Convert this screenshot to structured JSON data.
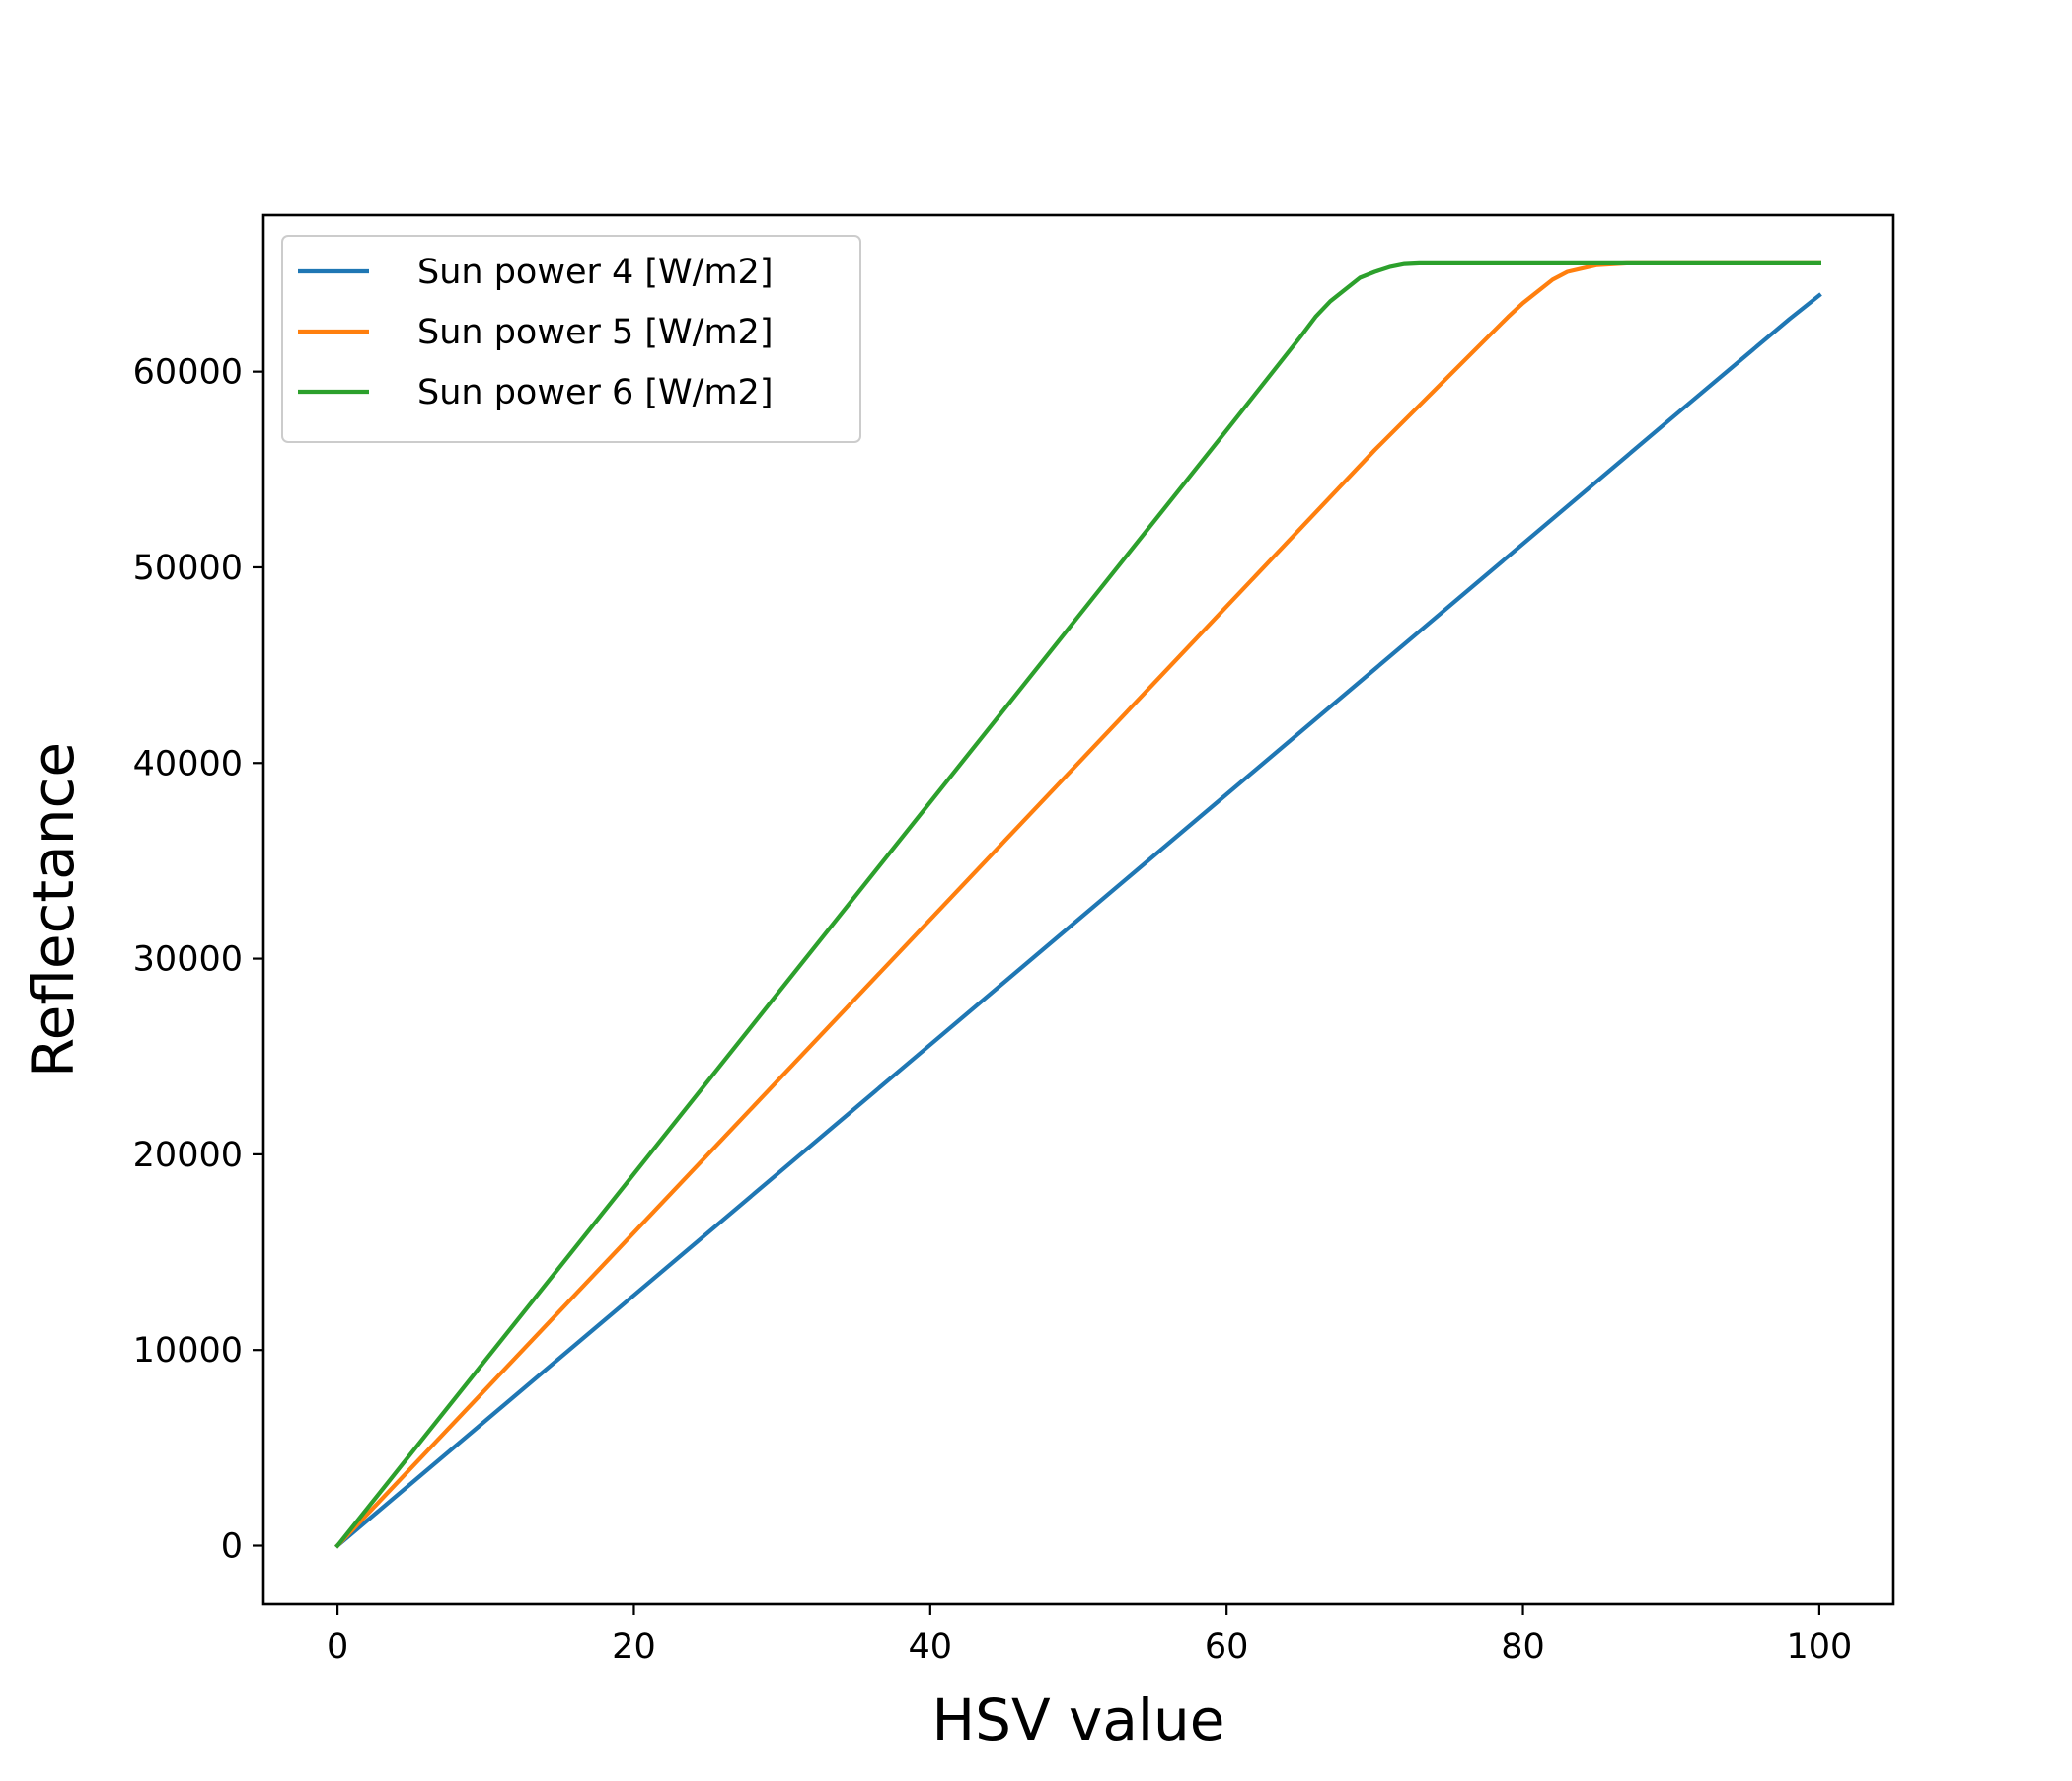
{
  "chart_data": {
    "type": "line",
    "xlabel": "HSV value",
    "ylabel": "Reflectance",
    "xlim": [
      -5,
      105
    ],
    "ylim": [
      -3000,
      68000
    ],
    "xticks": [
      0,
      20,
      40,
      60,
      80,
      100
    ],
    "yticks": [
      0,
      10000,
      20000,
      30000,
      40000,
      50000,
      60000
    ],
    "grid": false,
    "legend_position": "top-left",
    "series": [
      {
        "name": "Sun power 4 [W/m2]",
        "color": "#1f77b4",
        "x": [
          0,
          10,
          20,
          30,
          40,
          50,
          60,
          70,
          80,
          90,
          98,
          100
        ],
        "y": [
          0,
          6400,
          12800,
          19200,
          25600,
          32000,
          38400,
          44800,
          51200,
          57600,
          62700,
          63900
        ]
      },
      {
        "name": "Sun power 5 [W/m2]",
        "color": "#ff7f0e",
        "x": [
          0,
          10,
          20,
          30,
          40,
          50,
          60,
          70,
          79,
          80,
          82,
          83,
          85,
          87,
          100
        ],
        "y": [
          0,
          8000,
          16000,
          24000,
          32000,
          40000,
          48000,
          56000,
          62800,
          63500,
          64700,
          65100,
          65450,
          65535,
          65535
        ]
      },
      {
        "name": "Sun power 6 [W/m2]",
        "color": "#2ca02c",
        "x": [
          0,
          10,
          20,
          30,
          40,
          50,
          60,
          65,
          66,
          67,
          69,
          70,
          71,
          72,
          73,
          100
        ],
        "y": [
          0,
          9500,
          19000,
          28500,
          38000,
          47500,
          57000,
          61800,
          62800,
          63600,
          64800,
          65100,
          65350,
          65500,
          65535,
          65535
        ]
      }
    ]
  }
}
